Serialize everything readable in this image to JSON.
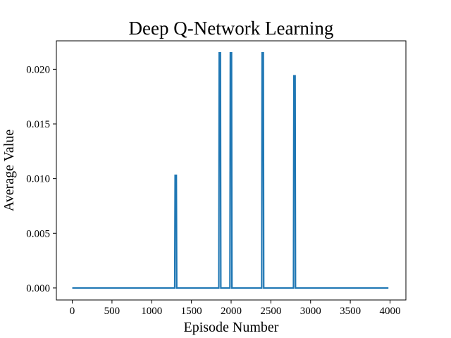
{
  "chart_data": {
    "type": "line",
    "title": "Deep Q-Network Learning",
    "xlabel": "Episode Number",
    "ylabel": "Average Value",
    "xlim": [
      -200,
      4200
    ],
    "ylim": [
      -0.0011,
      0.0226
    ],
    "xticks": [
      0,
      500,
      1000,
      1500,
      2000,
      2500,
      3000,
      3500,
      4000
    ],
    "yticks": [
      0.0,
      0.005,
      0.01,
      0.015,
      0.02
    ],
    "ytick_labels": [
      "0.000",
      "0.005",
      "0.010",
      "0.015",
      "0.020"
    ],
    "grid": false,
    "legend": null,
    "color": "#1f77b4",
    "series": [
      {
        "x": [
          0,
          1290,
          1295,
          1310,
          1315,
          1845,
          1850,
          1865,
          1870,
          1985,
          1990,
          2005,
          2010,
          2385,
          2390,
          2405,
          2410,
          2785,
          2790,
          2805,
          2810,
          3980
        ],
        "values": [
          0,
          0,
          0.0103,
          0.0103,
          0,
          0,
          0.0215,
          0.0215,
          0,
          0,
          0.0215,
          0.0215,
          0,
          0,
          0.0215,
          0.0215,
          0,
          0,
          0.0194,
          0.0194,
          0,
          0
        ]
      }
    ]
  }
}
